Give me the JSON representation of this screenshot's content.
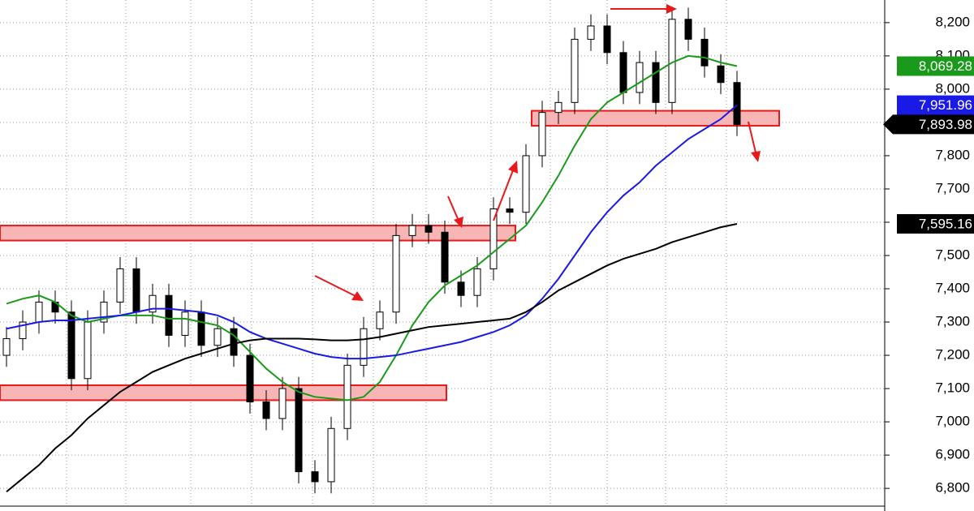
{
  "chart_data": {
    "type": "candlestick",
    "ylim": [
      6732,
      8268
    ],
    "yticks": [
      {
        "value": 6800,
        "label": "6,800"
      },
      {
        "value": 6900,
        "label": "6,900"
      },
      {
        "value": 7000,
        "label": "7,000"
      },
      {
        "value": 7100,
        "label": "7,100"
      },
      {
        "value": 7200,
        "label": "7,200"
      },
      {
        "value": 7300,
        "label": "7,300"
      },
      {
        "value": 7400,
        "label": "7,400"
      },
      {
        "value": 7500,
        "label": "7,500"
      },
      {
        "value": 7600,
        "label": "7,600"
      },
      {
        "value": 7700,
        "label": "7,700"
      },
      {
        "value": 7800,
        "label": "7,800"
      },
      {
        "value": 7900,
        "label": "7,900"
      },
      {
        "value": 8000,
        "label": "8,000"
      },
      {
        "value": 8100,
        "label": "8,100"
      },
      {
        "value": 8200,
        "label": "8,200"
      }
    ],
    "grid": true,
    "open": [
      7200,
      7250,
      7300,
      7360,
      7330,
      7130,
      7300,
      7360,
      7460,
      7330,
      7380,
      7260,
      7330,
      7230,
      7280,
      7200,
      7060,
      7010,
      7100,
      6850,
      6820,
      6980,
      7170,
      7280,
      7330,
      7560,
      7590,
      7570,
      7420,
      7380,
      7460,
      7640,
      7630,
      7800,
      7930,
      7960,
      8150,
      8190,
      8110,
      7990,
      8080,
      7960,
      8210,
      8150,
      8070,
      8020
    ],
    "high": [
      7285,
      7335,
      7395,
      7395,
      7365,
      7335,
      7395,
      7495,
      7495,
      7415,
      7415,
      7365,
      7365,
      7315,
      7315,
      7235,
      7095,
      7135,
      7135,
      6885,
      7015,
      7205,
      7315,
      7365,
      7595,
      7625,
      7625,
      7605,
      7455,
      7495,
      7675,
      7675,
      7835,
      7965,
      7995,
      8185,
      8225,
      8225,
      8145,
      8115,
      8115,
      8245,
      8245,
      8185,
      8105,
      8055
    ],
    "low": [
      7165,
      7215,
      7265,
      7295,
      7095,
      7095,
      7265,
      7325,
      7295,
      7295,
      7225,
      7225,
      7195,
      7195,
      7165,
      7025,
      6975,
      6975,
      6815,
      6785,
      6785,
      6945,
      7135,
      7245,
      7295,
      7525,
      7535,
      7385,
      7345,
      7345,
      7425,
      7595,
      7595,
      7765,
      7895,
      7925,
      8115,
      8075,
      7955,
      7955,
      7925,
      7925,
      8115,
      8035,
      7985,
      7859
    ],
    "close": [
      7250,
      7300,
      7360,
      7330,
      7130,
      7300,
      7360,
      7460,
      7330,
      7380,
      7260,
      7330,
      7230,
      7280,
      7200,
      7060,
      7010,
      7100,
      6850,
      6820,
      6980,
      7170,
      7280,
      7330,
      7560,
      7590,
      7570,
      7420,
      7380,
      7460,
      7640,
      7630,
      7800,
      7930,
      7960,
      8150,
      8190,
      8110,
      7990,
      8080,
      7960,
      8210,
      8150,
      8070,
      8020,
      7893.98
    ],
    "series": [
      {
        "color": "#1a9a1a",
        "values": [
          7355,
          7370,
          7380,
          7360,
          7320,
          7300,
          7310,
          7320,
          7320,
          7320,
          7310,
          7310,
          7300,
          7290,
          7260,
          7210,
          7160,
          7120,
          7090,
          7075,
          7070,
          7065,
          7075,
          7120,
          7200,
          7290,
          7360,
          7410,
          7440,
          7470,
          7510,
          7550,
          7590,
          7660,
          7740,
          7830,
          7910,
          7960,
          7990,
          8020,
          8050,
          8080,
          8100,
          8095,
          8080,
          8069.28
        ]
      },
      {
        "color": "#1a1ae6",
        "values": [
          7280,
          7290,
          7300,
          7305,
          7305,
          7310,
          7315,
          7320,
          7330,
          7340,
          7340,
          7335,
          7330,
          7320,
          7300,
          7270,
          7250,
          7235,
          7220,
          7205,
          7195,
          7190,
          7190,
          7195,
          7200,
          7210,
          7220,
          7230,
          7240,
          7255,
          7270,
          7290,
          7320,
          7370,
          7430,
          7500,
          7570,
          7630,
          7680,
          7720,
          7770,
          7810,
          7850,
          7880,
          7910,
          7951.96
        ]
      },
      {
        "color": "#000000",
        "values": [
          6790,
          6830,
          6870,
          6920,
          6960,
          7010,
          7050,
          7090,
          7120,
          7150,
          7170,
          7190,
          7205,
          7220,
          7235,
          7245,
          7250,
          7250,
          7250,
          7248,
          7245,
          7245,
          7248,
          7255,
          7265,
          7275,
          7285,
          7290,
          7295,
          7300,
          7305,
          7310,
          7330,
          7360,
          7395,
          7420,
          7445,
          7470,
          7490,
          7505,
          7520,
          7540,
          7555,
          7570,
          7585,
          7595.16
        ]
      }
    ],
    "zones": [
      {
        "low": 7065,
        "high": 7110
      },
      {
        "low": 7545,
        "high": 7590
      },
      {
        "low": 7890,
        "high": 7935
      }
    ],
    "price_tags": [
      {
        "value": 8069.28,
        "label": "8,069.28",
        "color": "#1a9a1a"
      },
      {
        "value": 7951.96,
        "label": "7,951.96",
        "color": "#1a1ae6"
      },
      {
        "value": 7893.98,
        "label": "7,893.98",
        "color": "#000000"
      },
      {
        "value": 7595.16,
        "label": "7,595.16",
        "color": "#000000"
      }
    ]
  }
}
